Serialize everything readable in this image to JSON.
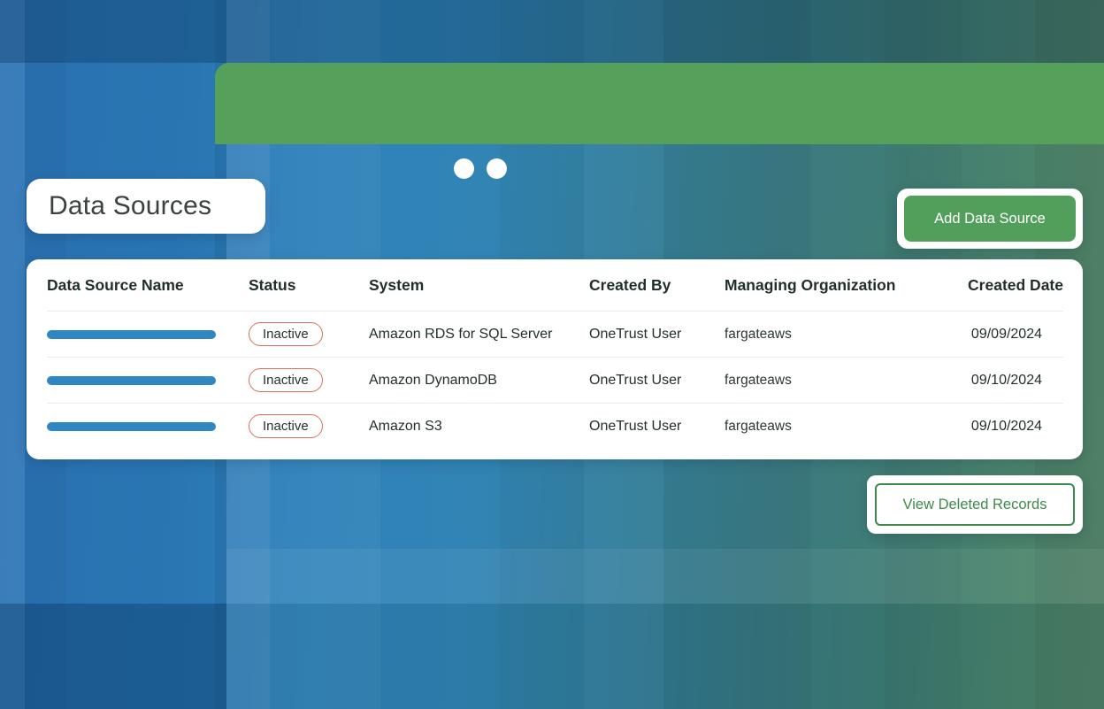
{
  "page": {
    "title": "Data Sources"
  },
  "toolbar": {
    "add_button_label": "Add Data Source",
    "view_deleted_label": "View Deleted Records"
  },
  "table": {
    "columns": [
      "Data Source Name",
      "Status",
      "System",
      "Created By",
      "Managing Organization",
      "Created Date"
    ],
    "rows": [
      {
        "name_redacted": "redacted-bar",
        "status": "Inactive",
        "system": "Amazon RDS for SQL Server",
        "created_by": "OneTrust User",
        "managing_organization": "fargateaws",
        "created_date": "09/09/2024"
      },
      {
        "name_redacted": "redacted-bar",
        "status": "Inactive",
        "system": "Amazon DynamoDB",
        "created_by": "OneTrust User",
        "managing_organization": "fargateaws",
        "created_date": "09/10/2024"
      },
      {
        "name_redacted": "redacted-bar",
        "status": "Inactive",
        "system": "Amazon S3",
        "created_by": "OneTrust User",
        "managing_organization": "fargateaws",
        "created_date": "09/10/2024"
      }
    ]
  },
  "colors": {
    "browser_bar_green": "#55a15c",
    "primary_button_green": "#529e5b",
    "outline_button_green": "#3c8a4a",
    "status_pill_border": "#d9705f",
    "redacted_bar_blue": "#2e87c3",
    "header_text": "#1f2e2a"
  }
}
